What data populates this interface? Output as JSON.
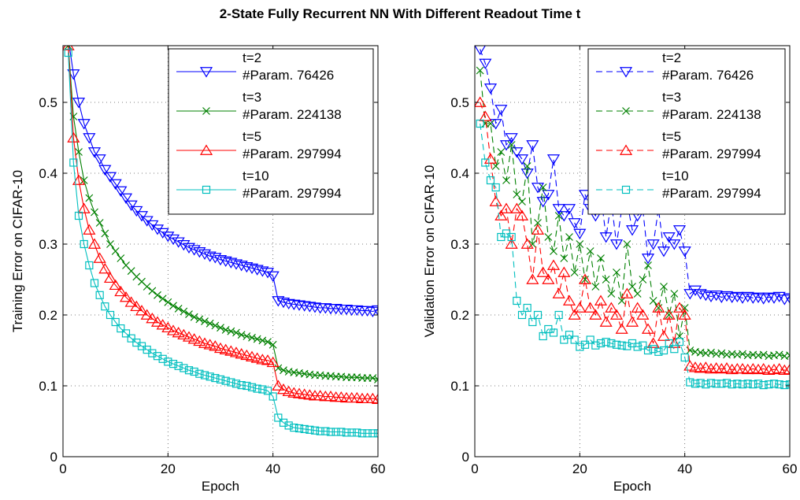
{
  "title": "2-State Fully Recurrent NN With Different Readout Time t",
  "chart_data": [
    {
      "type": "line",
      "xlabel": "Epoch",
      "ylabel": "Training Error on CIFAR-10",
      "xlim": [
        0,
        60
      ],
      "ylim": [
        0,
        0.58
      ],
      "xticks": [
        0,
        20,
        40,
        60
      ],
      "yticks": [
        0,
        0.1,
        0.2,
        0.3,
        0.4,
        0.5
      ],
      "grid": true,
      "legend_position": "top-right",
      "series": [
        {
          "name": "t=2",
          "param_label": "#Param. 76426",
          "color": "#0000ff",
          "marker": "triangle-down",
          "dash": "solid",
          "x": [
            1,
            2,
            3,
            4,
            5,
            6,
            7,
            8,
            9,
            10,
            11,
            12,
            13,
            14,
            15,
            16,
            17,
            18,
            19,
            20,
            21,
            22,
            23,
            24,
            25,
            26,
            27,
            28,
            29,
            30,
            31,
            32,
            33,
            34,
            35,
            36,
            37,
            38,
            39,
            40,
            41,
            42,
            43,
            44,
            45,
            46,
            47,
            48,
            49,
            50,
            51,
            52,
            53,
            54,
            55,
            56,
            57,
            58,
            59,
            60
          ],
          "values": [
            0.59,
            0.54,
            0.5,
            0.47,
            0.45,
            0.43,
            0.42,
            0.405,
            0.395,
            0.385,
            0.375,
            0.365,
            0.355,
            0.347,
            0.34,
            0.333,
            0.327,
            0.321,
            0.316,
            0.311,
            0.307,
            0.303,
            0.299,
            0.295,
            0.292,
            0.289,
            0.286,
            0.283,
            0.281,
            0.278,
            0.276,
            0.274,
            0.272,
            0.27,
            0.268,
            0.266,
            0.264,
            0.262,
            0.26,
            0.255,
            0.22,
            0.218,
            0.216,
            0.215,
            0.214,
            0.213,
            0.212,
            0.211,
            0.21,
            0.21,
            0.209,
            0.209,
            0.208,
            0.208,
            0.207,
            0.207,
            0.206,
            0.206,
            0.205,
            0.207
          ]
        },
        {
          "name": "t=3",
          "param_label": "#Param. 224138",
          "color": "#008000",
          "marker": "x",
          "dash": "solid",
          "x": [
            1,
            2,
            3,
            4,
            5,
            6,
            7,
            8,
            9,
            10,
            11,
            12,
            13,
            14,
            15,
            16,
            17,
            18,
            19,
            20,
            21,
            22,
            23,
            24,
            25,
            26,
            27,
            28,
            29,
            30,
            31,
            32,
            33,
            34,
            35,
            36,
            37,
            38,
            39,
            40,
            41,
            42,
            43,
            44,
            45,
            46,
            47,
            48,
            49,
            50,
            51,
            52,
            53,
            54,
            55,
            56,
            57,
            58,
            59,
            60
          ],
          "values": [
            0.58,
            0.48,
            0.43,
            0.39,
            0.365,
            0.345,
            0.33,
            0.315,
            0.3,
            0.29,
            0.28,
            0.27,
            0.262,
            0.254,
            0.247,
            0.24,
            0.234,
            0.228,
            0.223,
            0.218,
            0.213,
            0.209,
            0.205,
            0.201,
            0.197,
            0.194,
            0.191,
            0.188,
            0.185,
            0.182,
            0.179,
            0.177,
            0.175,
            0.172,
            0.17,
            0.168,
            0.166,
            0.164,
            0.162,
            0.158,
            0.125,
            0.122,
            0.12,
            0.119,
            0.118,
            0.117,
            0.116,
            0.115,
            0.115,
            0.114,
            0.114,
            0.113,
            0.113,
            0.112,
            0.112,
            0.112,
            0.111,
            0.111,
            0.111,
            0.109
          ]
        },
        {
          "name": "t=5",
          "param_label": "#Param. 297994",
          "color": "#ff0000",
          "marker": "triangle-up",
          "dash": "solid",
          "x": [
            1,
            2,
            3,
            4,
            5,
            6,
            7,
            8,
            9,
            10,
            11,
            12,
            13,
            14,
            15,
            16,
            17,
            18,
            19,
            20,
            21,
            22,
            23,
            24,
            25,
            26,
            27,
            28,
            29,
            30,
            31,
            32,
            33,
            34,
            35,
            36,
            37,
            38,
            39,
            40,
            41,
            42,
            43,
            44,
            45,
            46,
            47,
            48,
            49,
            50,
            51,
            52,
            53,
            54,
            55,
            56,
            57,
            58,
            59,
            60
          ],
          "values": [
            0.58,
            0.45,
            0.39,
            0.35,
            0.32,
            0.3,
            0.28,
            0.265,
            0.252,
            0.242,
            0.233,
            0.225,
            0.218,
            0.212,
            0.206,
            0.2,
            0.195,
            0.19,
            0.186,
            0.182,
            0.178,
            0.175,
            0.172,
            0.169,
            0.166,
            0.163,
            0.16,
            0.158,
            0.156,
            0.153,
            0.151,
            0.149,
            0.147,
            0.145,
            0.143,
            0.141,
            0.139,
            0.137,
            0.136,
            0.133,
            0.1,
            0.095,
            0.092,
            0.09,
            0.089,
            0.088,
            0.087,
            0.086,
            0.086,
            0.085,
            0.085,
            0.084,
            0.084,
            0.083,
            0.083,
            0.083,
            0.082,
            0.082,
            0.082,
            0.081
          ]
        },
        {
          "name": "t=10",
          "param_label": "#Param. 297994",
          "color": "#00bfbf",
          "marker": "square",
          "dash": "solid",
          "x": [
            1,
            2,
            3,
            4,
            5,
            6,
            7,
            8,
            9,
            10,
            11,
            12,
            13,
            14,
            15,
            16,
            17,
            18,
            19,
            20,
            21,
            22,
            23,
            24,
            25,
            26,
            27,
            28,
            29,
            30,
            31,
            32,
            33,
            34,
            35,
            36,
            37,
            38,
            39,
            40,
            41,
            42,
            43,
            44,
            45,
            46,
            47,
            48,
            49,
            50,
            51,
            52,
            53,
            54,
            55,
            56,
            57,
            58,
            59,
            60
          ],
          "values": [
            0.57,
            0.415,
            0.34,
            0.3,
            0.27,
            0.245,
            0.228,
            0.212,
            0.2,
            0.19,
            0.181,
            0.174,
            0.167,
            0.161,
            0.156,
            0.151,
            0.146,
            0.142,
            0.138,
            0.134,
            0.131,
            0.128,
            0.125,
            0.122,
            0.12,
            0.117,
            0.115,
            0.113,
            0.111,
            0.109,
            0.107,
            0.105,
            0.103,
            0.101,
            0.1,
            0.098,
            0.096,
            0.095,
            0.093,
            0.085,
            0.055,
            0.048,
            0.044,
            0.041,
            0.04,
            0.039,
            0.038,
            0.037,
            0.036,
            0.036,
            0.035,
            0.035,
            0.035,
            0.034,
            0.034,
            0.034,
            0.033,
            0.033,
            0.033,
            0.033
          ]
        }
      ]
    },
    {
      "type": "line",
      "xlabel": "Epoch",
      "ylabel": "Validation Error on CIFAR-10",
      "xlim": [
        0,
        60
      ],
      "ylim": [
        0,
        0.58
      ],
      "xticks": [
        0,
        20,
        40,
        60
      ],
      "yticks": [
        0,
        0.1,
        0.2,
        0.3,
        0.4,
        0.5
      ],
      "grid": true,
      "legend_position": "top-right",
      "series": [
        {
          "name": "t=2",
          "param_label": "#Param. 76426",
          "color": "#0000ff",
          "marker": "triangle-down",
          "dash": "dashed",
          "x": [
            1,
            2,
            3,
            4,
            5,
            6,
            7,
            8,
            9,
            10,
            11,
            12,
            13,
            14,
            15,
            16,
            17,
            18,
            19,
            20,
            21,
            22,
            23,
            24,
            25,
            26,
            27,
            28,
            29,
            30,
            31,
            32,
            33,
            34,
            35,
            36,
            37,
            38,
            39,
            40,
            41,
            42,
            43,
            44,
            45,
            46,
            47,
            48,
            49,
            50,
            51,
            52,
            53,
            54,
            55,
            56,
            57,
            58,
            59,
            60
          ],
          "values": [
            0.575,
            0.555,
            0.52,
            0.47,
            0.49,
            0.44,
            0.45,
            0.43,
            0.42,
            0.4,
            0.44,
            0.38,
            0.36,
            0.37,
            0.42,
            0.35,
            0.34,
            0.35,
            0.33,
            0.315,
            0.37,
            0.35,
            0.34,
            0.37,
            0.31,
            0.36,
            0.3,
            0.35,
            0.36,
            0.32,
            0.34,
            0.35,
            0.28,
            0.3,
            0.35,
            0.29,
            0.31,
            0.3,
            0.32,
            0.29,
            0.23,
            0.235,
            0.23,
            0.228,
            0.226,
            0.228,
            0.225,
            0.227,
            0.225,
            0.226,
            0.224,
            0.226,
            0.224,
            0.225,
            0.223,
            0.225,
            0.224,
            0.226,
            0.222,
            0.224
          ]
        },
        {
          "name": "t=3",
          "param_label": "#Param. 224138",
          "color": "#008000",
          "marker": "x",
          "dash": "dashed",
          "x": [
            1,
            2,
            3,
            4,
            5,
            6,
            7,
            8,
            9,
            10,
            11,
            12,
            13,
            14,
            15,
            16,
            17,
            18,
            19,
            20,
            21,
            22,
            23,
            24,
            25,
            26,
            27,
            28,
            29,
            30,
            31,
            32,
            33,
            34,
            35,
            36,
            37,
            38,
            39,
            40,
            41,
            42,
            43,
            44,
            45,
            46,
            47,
            48,
            49,
            50,
            51,
            52,
            53,
            54,
            55,
            56,
            57,
            58,
            59,
            60
          ],
          "values": [
            0.545,
            0.47,
            0.47,
            0.41,
            0.43,
            0.39,
            0.44,
            0.37,
            0.36,
            0.41,
            0.3,
            0.33,
            0.38,
            0.31,
            0.29,
            0.34,
            0.28,
            0.31,
            0.26,
            0.3,
            0.25,
            0.29,
            0.24,
            0.28,
            0.25,
            0.23,
            0.26,
            0.22,
            0.3,
            0.24,
            0.23,
            0.25,
            0.27,
            0.22,
            0.21,
            0.24,
            0.2,
            0.23,
            0.17,
            0.21,
            0.15,
            0.148,
            0.147,
            0.146,
            0.147,
            0.145,
            0.146,
            0.144,
            0.145,
            0.144,
            0.145,
            0.143,
            0.144,
            0.143,
            0.144,
            0.142,
            0.143,
            0.144,
            0.142,
            0.143
          ]
        },
        {
          "name": "t=5",
          "param_label": "#Param. 297994",
          "color": "#ff0000",
          "marker": "triangle-up",
          "dash": "dashed",
          "x": [
            1,
            2,
            3,
            4,
            5,
            6,
            7,
            8,
            9,
            10,
            11,
            12,
            13,
            14,
            15,
            16,
            17,
            18,
            19,
            20,
            21,
            22,
            23,
            24,
            25,
            26,
            27,
            28,
            29,
            30,
            31,
            32,
            33,
            34,
            35,
            36,
            37,
            38,
            39,
            40,
            41,
            42,
            43,
            44,
            45,
            46,
            47,
            48,
            49,
            50,
            51,
            52,
            53,
            54,
            55,
            56,
            57,
            58,
            59,
            60
          ],
          "values": [
            0.5,
            0.48,
            0.42,
            0.36,
            0.34,
            0.35,
            0.3,
            0.35,
            0.34,
            0.3,
            0.25,
            0.32,
            0.26,
            0.25,
            0.27,
            0.23,
            0.26,
            0.22,
            0.2,
            0.21,
            0.25,
            0.21,
            0.2,
            0.22,
            0.19,
            0.21,
            0.2,
            0.18,
            0.23,
            0.19,
            0.21,
            0.2,
            0.18,
            0.16,
            0.21,
            0.17,
            0.2,
            0.16,
            0.21,
            0.2,
            0.128,
            0.126,
            0.125,
            0.126,
            0.124,
            0.125,
            0.124,
            0.125,
            0.123,
            0.124,
            0.124,
            0.123,
            0.124,
            0.123,
            0.124,
            0.122,
            0.123,
            0.124,
            0.122,
            0.123
          ]
        },
        {
          "name": "t=10",
          "param_label": "#Param. 297994",
          "color": "#00bfbf",
          "marker": "square",
          "dash": "dashed",
          "x": [
            1,
            2,
            3,
            4,
            5,
            6,
            7,
            8,
            9,
            10,
            11,
            12,
            13,
            14,
            15,
            16,
            17,
            18,
            19,
            20,
            21,
            22,
            23,
            24,
            25,
            26,
            27,
            28,
            29,
            30,
            31,
            32,
            33,
            34,
            35,
            36,
            37,
            38,
            39,
            40,
            41,
            42,
            43,
            44,
            45,
            46,
            47,
            48,
            49,
            50,
            51,
            52,
            53,
            54,
            55,
            56,
            57,
            58,
            59,
            60
          ],
          "values": [
            0.47,
            0.415,
            0.39,
            0.38,
            0.31,
            0.315,
            0.31,
            0.22,
            0.2,
            0.21,
            0.19,
            0.2,
            0.17,
            0.18,
            0.175,
            0.2,
            0.165,
            0.172,
            0.165,
            0.155,
            0.158,
            0.165,
            0.157,
            0.16,
            0.162,
            0.16,
            0.158,
            0.157,
            0.156,
            0.16,
            0.155,
            0.157,
            0.15,
            0.152,
            0.148,
            0.15,
            0.16,
            0.152,
            0.162,
            0.14,
            0.105,
            0.103,
            0.104,
            0.102,
            0.104,
            0.103,
            0.103,
            0.104,
            0.102,
            0.103,
            0.102,
            0.103,
            0.102,
            0.103,
            0.101,
            0.102,
            0.103,
            0.102,
            0.101,
            0.102
          ]
        }
      ]
    }
  ]
}
